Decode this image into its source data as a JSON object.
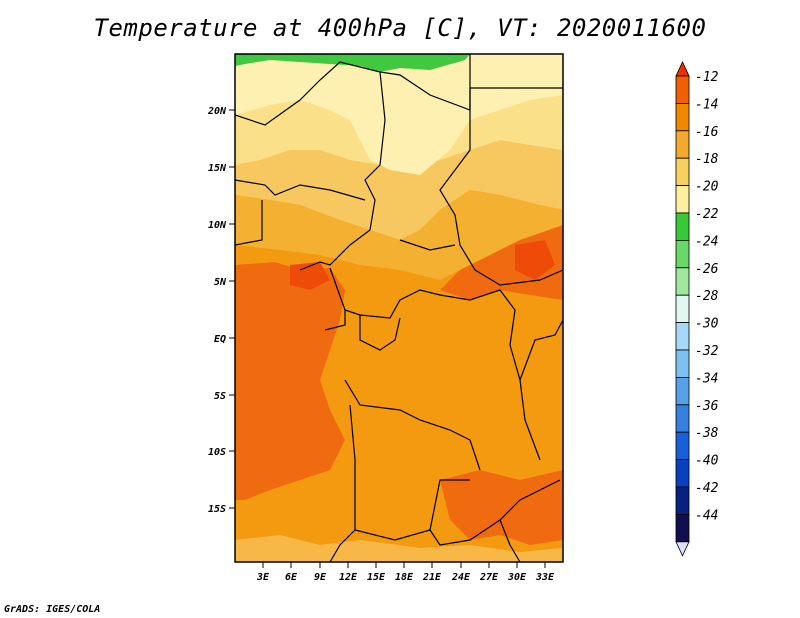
{
  "title": "Temperature at 400hPa [C], VT: 2020011600",
  "credit": "GrADS: IGES/COLA",
  "map": {
    "lat_labels": [
      "20N",
      "15N",
      "10N",
      "5N",
      "EQ",
      "5S",
      "10S",
      "15S"
    ],
    "lon_labels": [
      "3E",
      "6E",
      "9E",
      "12E",
      "15E",
      "18E",
      "21E",
      "24E",
      "27E",
      "30E",
      "33E"
    ]
  },
  "colorbar": {
    "labels": [
      "-12",
      "-14",
      "-16",
      "-18",
      "-20",
      "-22",
      "-24",
      "-26",
      "-28",
      "-30",
      "-32",
      "-34",
      "-36",
      "-38",
      "-40",
      "-42",
      "-44"
    ],
    "colors": [
      "#f03000",
      "#f06000",
      "#f08800",
      "#f4a830",
      "#f8d060",
      "#fcf0a0",
      "#38c838",
      "#68d868",
      "#a0e8a0",
      "#e0f8f0",
      "#a8d8f8",
      "#80c0f0",
      "#58a0e8",
      "#3880e0",
      "#1860d8",
      "#0840c0",
      "#082080",
      "#101050",
      "#e0e0f8"
    ]
  },
  "chart_data": {
    "type": "heatmap",
    "title": "Temperature at 400hPa [C], VT: 2020011600",
    "variable": "Temperature at 400hPa",
    "units": "C",
    "valid_time": "2020011600",
    "x_ticks": [
      "3E",
      "6E",
      "9E",
      "12E",
      "15E",
      "18E",
      "21E",
      "24E",
      "27E",
      "30E",
      "33E"
    ],
    "y_ticks": [
      "20N",
      "15N",
      "10N",
      "5N",
      "EQ",
      "5S",
      "10S",
      "15S"
    ],
    "colorbar_levels": [
      -12,
      -14,
      -16,
      -18,
      -20,
      -22,
      -24,
      -26,
      -28,
      -30,
      -32,
      -34,
      -36,
      -38,
      -40,
      -42,
      -44
    ]
  }
}
